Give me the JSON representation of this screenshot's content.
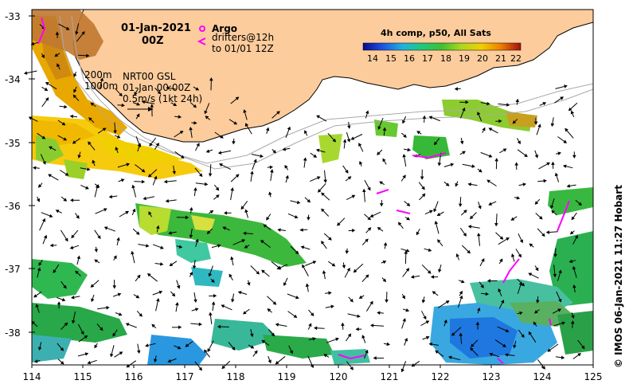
{
  "map": {
    "date": "01-Jan-2021",
    "time": "00Z",
    "product": "NRT00 GSL",
    "product_time": "01-Jan 00:00Z",
    "current_scale": "0.5m/s (1kt 24h)",
    "isobath_shallow": "200m",
    "isobath_deep": "1000m",
    "argo_label": "Argo",
    "drifter_label_line1": "drifters@12h",
    "drifter_label_line2": "to 01/01 12Z",
    "colorbar_title": "4h comp, p50, All Sats",
    "colorbar_ticks": [
      "14",
      "15",
      "16",
      "17",
      "18",
      "19",
      "20",
      "21",
      "22"
    ],
    "copyright": "© IMOS 06-Jan-2021 11:27 Hobart",
    "lat_ticks": [
      "-33",
      "-34",
      "-35",
      "-36",
      "-37",
      "-38"
    ],
    "lon_ticks": [
      "114",
      "115",
      "116",
      "117",
      "118",
      "119",
      "120",
      "121",
      "122",
      "123",
      "124",
      "125"
    ],
    "colors": {
      "land": "#fccc9c",
      "argo": "#ff00ff",
      "drifter": "#ff00ff",
      "sst_cold": "#1e6fe0",
      "sst_warm": "#f5c000",
      "sst_hot": "#b8481a"
    }
  }
}
